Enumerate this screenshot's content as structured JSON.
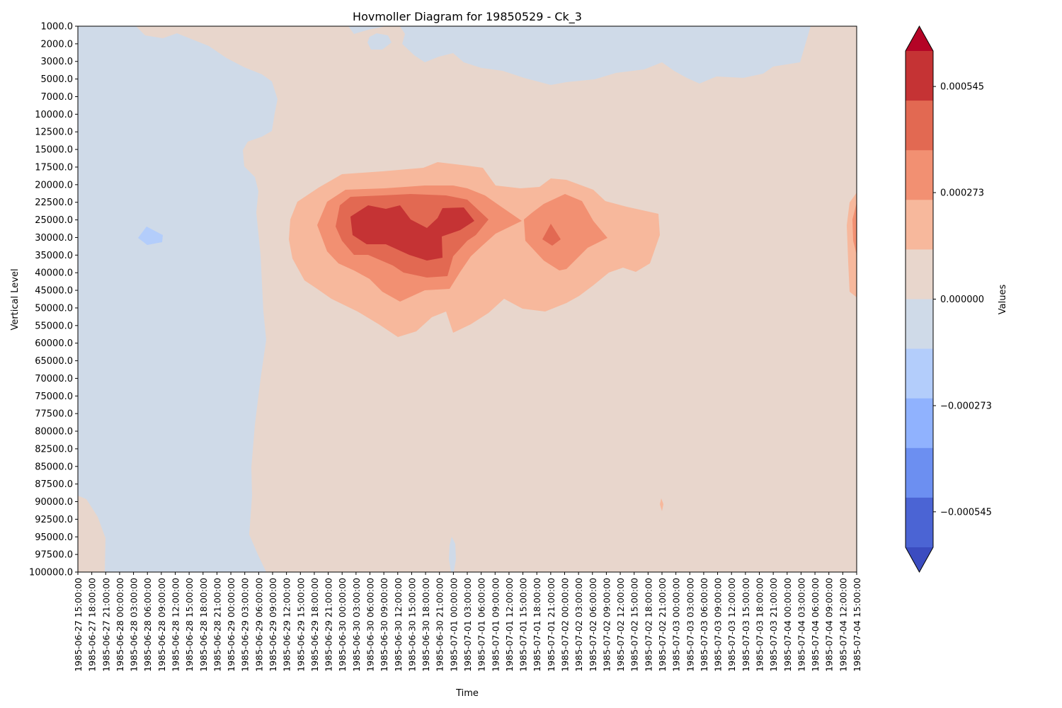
{
  "chart_data": {
    "type": "heatmap",
    "subtype": "filled-contour",
    "title": "Hovmoller Diagram for 19850529 - Ck_3",
    "xlabel": "Time",
    "ylabel": "Vertical Level",
    "x_ticks": [
      "1985-06-27 15:00:00",
      "1985-06-27 18:00:00",
      "1985-06-27 21:00:00",
      "1985-06-28 00:00:00",
      "1985-06-28 03:00:00",
      "1985-06-28 06:00:00",
      "1985-06-28 09:00:00",
      "1985-06-28 12:00:00",
      "1985-06-28 15:00:00",
      "1985-06-28 18:00:00",
      "1985-06-28 21:00:00",
      "1985-06-29 00:00:00",
      "1985-06-29 03:00:00",
      "1985-06-29 06:00:00",
      "1985-06-29 09:00:00",
      "1985-06-29 12:00:00",
      "1985-06-29 15:00:00",
      "1985-06-29 18:00:00",
      "1985-06-29 21:00:00",
      "1985-06-30 00:00:00",
      "1985-06-30 03:00:00",
      "1985-06-30 06:00:00",
      "1985-06-30 09:00:00",
      "1985-06-30 12:00:00",
      "1985-06-30 15:00:00",
      "1985-06-30 18:00:00",
      "1985-06-30 21:00:00",
      "1985-07-01 00:00:00",
      "1985-07-01 03:00:00",
      "1985-07-01 06:00:00",
      "1985-07-01 09:00:00",
      "1985-07-01 12:00:00",
      "1985-07-01 15:00:00",
      "1985-07-01 18:00:00",
      "1985-07-01 21:00:00",
      "1985-07-02 00:00:00",
      "1985-07-02 03:00:00",
      "1985-07-02 06:00:00",
      "1985-07-02 09:00:00",
      "1985-07-02 12:00:00",
      "1985-07-02 15:00:00",
      "1985-07-02 18:00:00",
      "1985-07-02 21:00:00",
      "1985-07-03 00:00:00",
      "1985-07-03 03:00:00",
      "1985-07-03 06:00:00",
      "1985-07-03 09:00:00",
      "1985-07-03 12:00:00",
      "1985-07-03 15:00:00",
      "1985-07-03 18:00:00",
      "1985-07-03 21:00:00",
      "1985-07-04 00:00:00",
      "1985-07-04 03:00:00",
      "1985-07-04 06:00:00",
      "1985-07-04 09:00:00",
      "1985-07-04 12:00:00",
      "1985-07-04 15:00:00"
    ],
    "y_levels": [
      "1000.0",
      "2000.0",
      "3000.0",
      "5000.0",
      "7000.0",
      "10000.0",
      "12500.0",
      "15000.0",
      "17500.0",
      "20000.0",
      "22500.0",
      "25000.0",
      "30000.0",
      "35000.0",
      "40000.0",
      "45000.0",
      "50000.0",
      "55000.0",
      "60000.0",
      "65000.0",
      "70000.0",
      "75000.0",
      "77500.0",
      "80000.0",
      "82500.0",
      "85000.0",
      "87500.0",
      "90000.0",
      "92500.0",
      "95000.0",
      "97500.0",
      "100000.0"
    ],
    "y_axis_inverted": true,
    "colormap": "coolwarm",
    "contour_levels": [
      -0.000636,
      -0.000545,
      -0.000455,
      -0.000364,
      -0.000273,
      -0.000182,
      -9.1e-05,
      0.0,
      9.1e-05,
      0.000182,
      0.000273,
      0.000364,
      0.000455,
      0.000545,
      0.000636
    ],
    "colorbar": {
      "label": "Values",
      "extend": "both",
      "tick_labels": [
        "0.000545",
        "0.000273",
        "0.000000",
        "−0.000273",
        "−0.000545"
      ],
      "tick_values": [
        0.000545,
        0.000273,
        0.0,
        -0.000273,
        -0.000545
      ],
      "band_colors_top_to_bottom": [
        "#c53334",
        "#e26952",
        "#f29072",
        "#f7b89c",
        "#e8d6cc",
        "#cfdae8",
        "#b3cdfb",
        "#90b2fe",
        "#6c8ff1",
        "#4b64d4"
      ],
      "over_color": "#b40426",
      "under_color": "#3b4cc0"
    },
    "regions": {
      "background_positive_color": "#e8d6cc",
      "background_negative_color": "#cfdae8",
      "light_blue_spot_color": "#b3cdfb",
      "band1_color": "#f7b89c",
      "band2_color": "#f29072",
      "band3_color": "#e26952",
      "band4_color": "#c53334"
    }
  }
}
